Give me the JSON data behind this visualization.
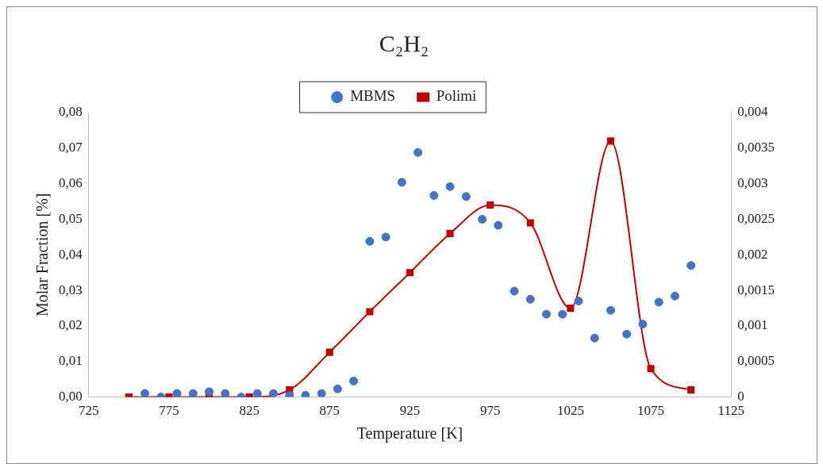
{
  "chart_data": {
    "type": "scatter",
    "title": "C₂H₂",
    "xlabel": "Temperature [K]",
    "ylabel": "Molar Fraction [%]",
    "xlim": [
      725,
      1125
    ],
    "xticks": [
      725,
      775,
      825,
      875,
      925,
      975,
      1025,
      1075,
      1125
    ],
    "ylim": [
      0,
      0.08
    ],
    "yticks": [
      {
        "value": 0,
        "label": "0,00"
      },
      {
        "value": 0.01,
        "label": "0,01"
      },
      {
        "value": 0.02,
        "label": "0,02"
      },
      {
        "value": 0.03,
        "label": "0,03"
      },
      {
        "value": 0.04,
        "label": "0,04"
      },
      {
        "value": 0.05,
        "label": "0,05"
      },
      {
        "value": 0.06,
        "label": "0,06"
      },
      {
        "value": 0.07,
        "label": "0,07"
      },
      {
        "value": 0.08,
        "label": "0,08"
      }
    ],
    "y2lim": [
      0,
      0.004
    ],
    "y2ticks": [
      0,
      {
        "value": 0.0005,
        "label": "0,0005"
      },
      {
        "value": 0.001,
        "label": "0,001"
      },
      {
        "value": 0.0015,
        "label": "0,0015"
      },
      {
        "value": 0.002,
        "label": "0,002"
      },
      {
        "value": 0.0025,
        "label": "0,0025"
      },
      {
        "value": 0.003,
        "label": "0,003"
      },
      {
        "value": 0.0035,
        "label": "0,0035"
      },
      {
        "value": 0.004,
        "label": "0,004"
      }
    ],
    "grid": false,
    "legend": "top",
    "series": [
      {
        "name": "MBMS",
        "marker": "circle",
        "color": "#4472c4",
        "x": [
          760,
          770,
          780,
          790,
          800,
          810,
          820,
          830,
          840,
          850,
          860,
          870,
          880,
          890,
          900,
          910,
          920,
          930,
          940,
          950,
          960,
          970,
          980,
          990,
          1000,
          1010,
          1020,
          1030,
          1040,
          1050,
          1060,
          1070,
          1080,
          1090,
          1100
        ],
        "values": [
          0.001,
          0,
          0.001,
          0.001,
          0.0015,
          0.001,
          0,
          0.001,
          0.001,
          0.0005,
          0.0005,
          0.001,
          0.0023,
          0.0045,
          0.0438,
          0.045,
          0.0604,
          0.0688,
          0.0567,
          0.0592,
          0.0564,
          0.05,
          0.0483,
          0.0298,
          0.0275,
          0.0233,
          0.0233,
          0.027,
          0.0166,
          0.0244,
          0.0177,
          0.0205,
          0.0267,
          0.0284,
          0.037
        ]
      },
      {
        "name": "Polimi",
        "type": "line",
        "marker": "square",
        "axis": "y2",
        "color": "#c00000",
        "x": [
          750,
          775,
          800,
          825,
          850,
          875,
          900,
          925,
          950,
          975,
          1000,
          1025,
          1050,
          1075,
          1100
        ],
        "values": [
          0,
          0,
          0,
          0,
          0.0001,
          0.00063,
          0.0012,
          0.00175,
          0.0023,
          0.0027,
          0.00245,
          0.00125,
          0.0036,
          0.0004,
          0.0001
        ]
      }
    ]
  }
}
